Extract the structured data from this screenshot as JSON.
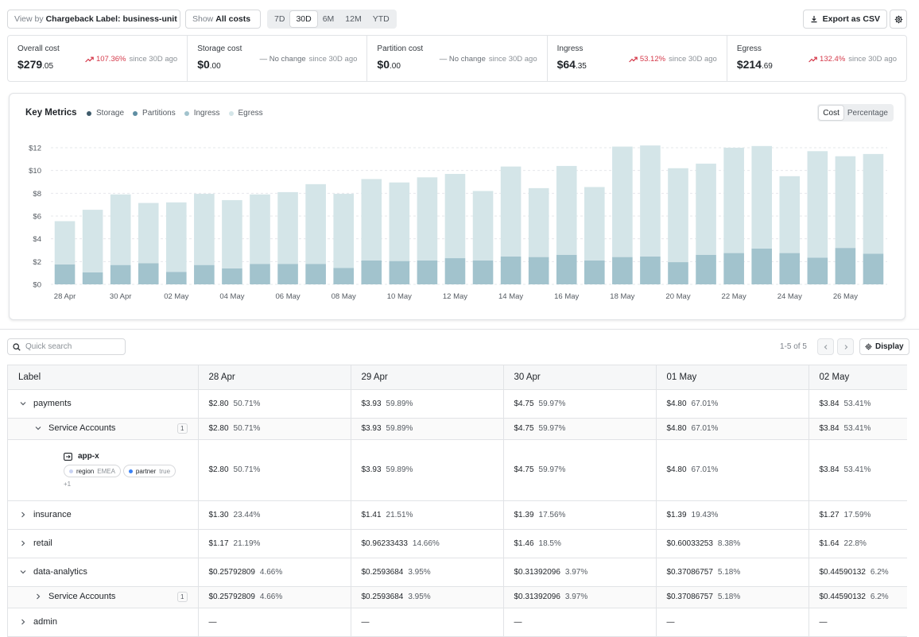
{
  "toolbar": {
    "view_by_prefix": "View by",
    "view_by_value": "Chargeback Label: business-unit",
    "show_prefix": "Show",
    "show_value": "All costs",
    "ranges": [
      "7D",
      "30D",
      "6M",
      "12M",
      "YTD"
    ],
    "active_range": "30D",
    "export_label": "Export as CSV"
  },
  "stats": [
    {
      "label": "Overall cost",
      "dollars": "$279",
      "cents": ".05",
      "change": "107.36%",
      "direction": "up",
      "since": "since 30D ago"
    },
    {
      "label": "Storage cost",
      "dollars": "$0",
      "cents": ".00",
      "change": "No change",
      "direction": "none",
      "since": "since 30D ago"
    },
    {
      "label": "Partition cost",
      "dollars": "$0",
      "cents": ".00",
      "change": "No change",
      "direction": "none",
      "since": "since 30D ago"
    },
    {
      "label": "Ingress",
      "dollars": "$64",
      "cents": ".35",
      "change": "53.12%",
      "direction": "up",
      "since": "since 30D ago"
    },
    {
      "label": "Egress",
      "dollars": "$214",
      "cents": ".69",
      "change": "132.4%",
      "direction": "up",
      "since": "since 30D ago"
    }
  ],
  "chart": {
    "title": "Key Metrics",
    "toggle": [
      "Cost",
      "Percentage"
    ],
    "active_toggle": "Cost"
  },
  "chart_data": {
    "type": "bar",
    "stacked": true,
    "categories": [
      "28 Apr",
      "29 Apr",
      "30 Apr",
      "01 May",
      "02 May",
      "03 May",
      "04 May",
      "05 May",
      "06 May",
      "07 May",
      "08 May",
      "09 May",
      "10 May",
      "11 May",
      "12 May",
      "13 May",
      "14 May",
      "15 May",
      "16 May",
      "17 May",
      "18 May",
      "19 May",
      "20 May",
      "21 May",
      "22 May",
      "23 May",
      "24 May",
      "25 May",
      "26 May",
      "27 May"
    ],
    "x_tick_labels": [
      "28 Apr",
      "30 Apr",
      "02 May",
      "04 May",
      "06 May",
      "08 May",
      "10 May",
      "12 May",
      "14 May",
      "16 May",
      "18 May",
      "20 May",
      "22 May",
      "24 May",
      "26 May"
    ],
    "y_ticks": [
      "$0",
      "$2",
      "$4",
      "$6",
      "$8",
      "$10",
      "$12"
    ],
    "ylim": [
      0,
      12
    ],
    "grid": true,
    "legend_position": "top-left",
    "series": [
      {
        "name": "Storage",
        "color": "#3f5b6b",
        "values": [
          0,
          0,
          0,
          0,
          0,
          0,
          0,
          0,
          0,
          0,
          0,
          0,
          0,
          0,
          0,
          0,
          0,
          0,
          0,
          0,
          0,
          0,
          0,
          0,
          0,
          0,
          0,
          0,
          0,
          0
        ]
      },
      {
        "name": "Partitions",
        "color": "#5f8ea3",
        "values": [
          0,
          0,
          0,
          0,
          0,
          0,
          0,
          0,
          0,
          0,
          0,
          0,
          0,
          0,
          0,
          0,
          0,
          0,
          0,
          0,
          0,
          0,
          0,
          0,
          0,
          0,
          0,
          0,
          0,
          0
        ]
      },
      {
        "name": "Ingress",
        "color": "#a2c3cd",
        "values": [
          1.75,
          1.05,
          1.7,
          1.85,
          1.1,
          1.7,
          1.4,
          1.8,
          1.8,
          1.8,
          1.45,
          2.1,
          2.05,
          2.1,
          2.3,
          2.1,
          2.45,
          2.4,
          2.6,
          2.1,
          2.4,
          2.45,
          1.95,
          2.6,
          2.75,
          3.15,
          2.75,
          2.35,
          3.2,
          2.7
        ]
      },
      {
        "name": "Egress",
        "color": "#d4e5e8",
        "values": [
          3.8,
          5.5,
          6.2,
          5.3,
          6.1,
          6.25,
          6.0,
          6.1,
          6.3,
          7.0,
          6.5,
          7.15,
          6.9,
          7.3,
          7.4,
          6.1,
          7.9,
          6.05,
          7.8,
          6.45,
          9.7,
          9.75,
          8.25,
          8.0,
          9.25,
          9.0,
          6.75,
          9.35,
          8.05,
          8.75
        ]
      }
    ]
  },
  "search": {
    "placeholder": "Quick search"
  },
  "pager": {
    "text": "1-5 of 5",
    "display_label": "Display"
  },
  "table": {
    "label_header": "Label",
    "date_headers": [
      "28 Apr",
      "29 Apr",
      "30 Apr",
      "01 May",
      "02 May"
    ],
    "app_name": "app-x",
    "tags": [
      {
        "key": "region",
        "value": "EMEA"
      },
      {
        "key": "partner",
        "value": "true"
      }
    ],
    "more_tags": "+1",
    "rows": [
      {
        "label": "payments",
        "expanded": true,
        "cells": [
          [
            "$2.80",
            "50.71%"
          ],
          [
            "$3.93",
            "59.89%"
          ],
          [
            "$4.75",
            "59.97%"
          ],
          [
            "$4.80",
            "67.01%"
          ],
          [
            "$3.84",
            "53.41%"
          ]
        ]
      },
      {
        "label": "Service Accounts",
        "count": "1",
        "expanded": true,
        "cells": [
          [
            "$2.80",
            "50.71%"
          ],
          [
            "$3.93",
            "59.89%"
          ],
          [
            "$4.75",
            "59.97%"
          ],
          [
            "$4.80",
            "67.01%"
          ],
          [
            "$3.84",
            "53.41%"
          ]
        ]
      },
      {
        "label": "app-x",
        "cells": [
          [
            "$2.80",
            "50.71%"
          ],
          [
            "$3.93",
            "59.89%"
          ],
          [
            "$4.75",
            "59.97%"
          ],
          [
            "$4.80",
            "67.01%"
          ],
          [
            "$3.84",
            "53.41%"
          ]
        ]
      },
      {
        "label": "insurance",
        "expanded": false,
        "cells": [
          [
            "$1.30",
            "23.44%"
          ],
          [
            "$1.41",
            "21.51%"
          ],
          [
            "$1.39",
            "17.56%"
          ],
          [
            "$1.39",
            "19.43%"
          ],
          [
            "$1.27",
            "17.59%"
          ]
        ]
      },
      {
        "label": "retail",
        "expanded": false,
        "cells": [
          [
            "$1.17",
            "21.19%"
          ],
          [
            "$0.96233433",
            "14.66%"
          ],
          [
            "$1.46",
            "18.5%"
          ],
          [
            "$0.60033253",
            "8.38%"
          ],
          [
            "$1.64",
            "22.8%"
          ]
        ]
      },
      {
        "label": "data-analytics",
        "expanded": true,
        "cells": [
          [
            "$0.25792809",
            "4.66%"
          ],
          [
            "$0.2593684",
            "3.95%"
          ],
          [
            "$0.31392096",
            "3.97%"
          ],
          [
            "$0.37086757",
            "5.18%"
          ],
          [
            "$0.44590132",
            "6.2%"
          ]
        ]
      },
      {
        "label": "Service Accounts",
        "count": "1",
        "expanded": false,
        "cells": [
          [
            "$0.25792809",
            "4.66%"
          ],
          [
            "$0.2593684",
            "3.95%"
          ],
          [
            "$0.31392096",
            "3.97%"
          ],
          [
            "$0.37086757",
            "5.18%"
          ],
          [
            "$0.44590132",
            "6.2%"
          ]
        ]
      },
      {
        "label": "admin",
        "expanded": false,
        "cells": [
          [
            "—",
            ""
          ],
          [
            "—",
            ""
          ],
          [
            "—",
            ""
          ],
          [
            "—",
            ""
          ],
          [
            "—",
            ""
          ]
        ]
      }
    ]
  }
}
